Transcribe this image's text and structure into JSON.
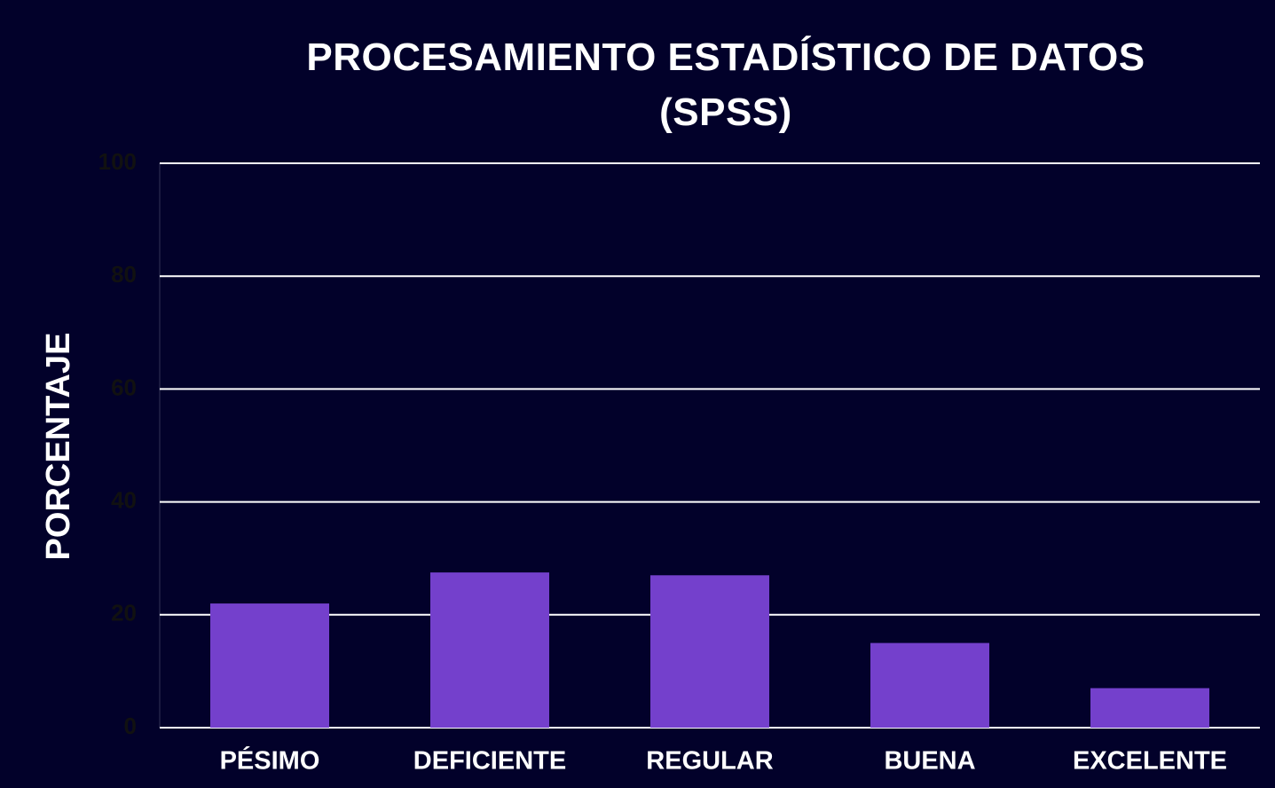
{
  "chart_data": {
    "type": "bar",
    "title": "PROCESAMIENTO ESTADÍSTICO DE DATOS (SPSS)",
    "y_label": "PORCENTAJE",
    "categories": [
      "PÉSIMO",
      "DEFICIENTE",
      "REGULAR",
      "BUENA",
      "EXCELENTE"
    ],
    "values": [
      22,
      27.5,
      27,
      15,
      7
    ],
    "color": "#7440cc",
    "ylim": [
      0,
      100
    ],
    "yticks": [
      0,
      20,
      40,
      60,
      80,
      100
    ],
    "grid": true
  }
}
